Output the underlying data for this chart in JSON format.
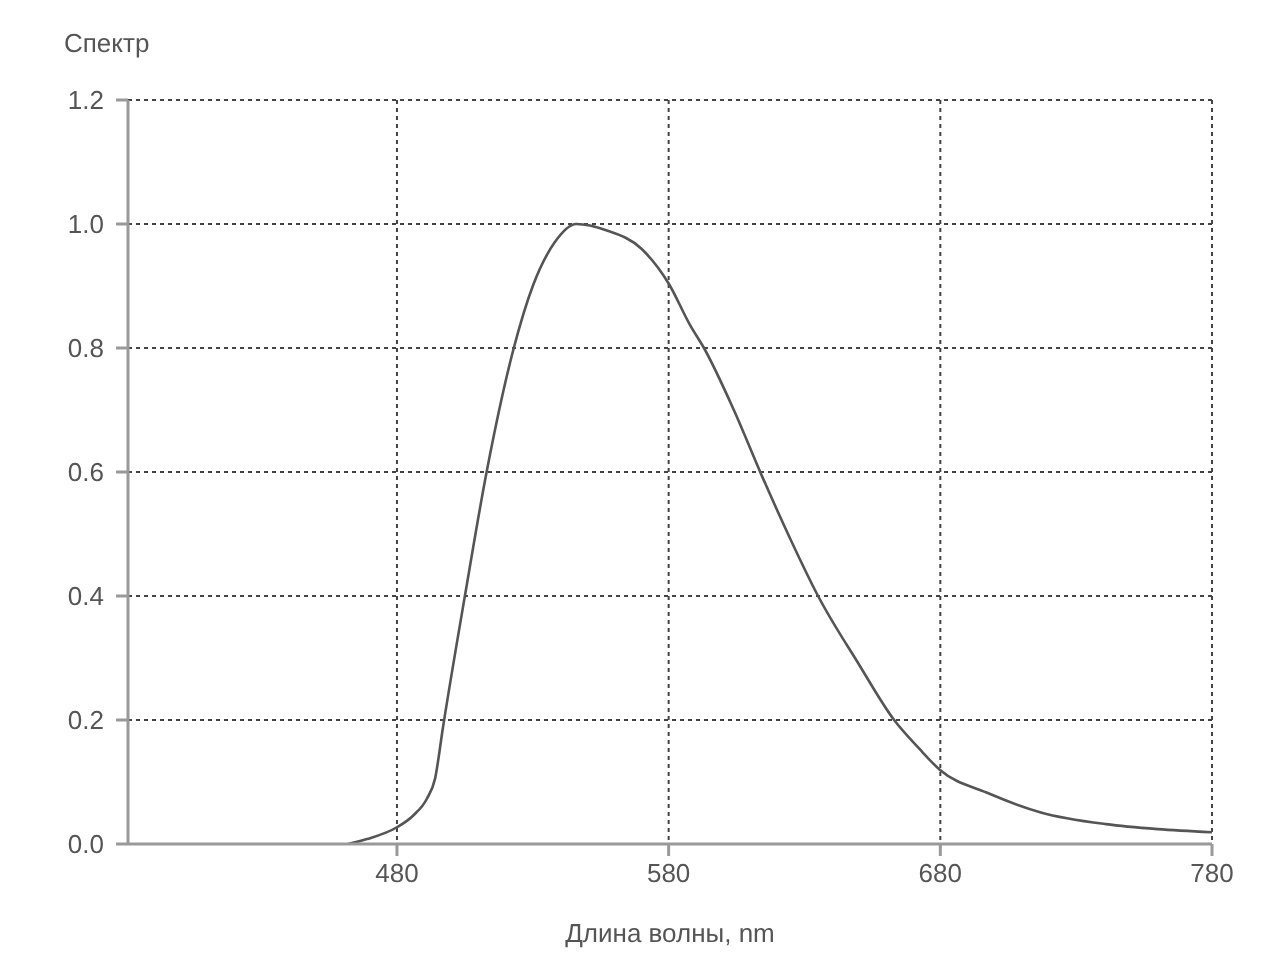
{
  "chart_data": {
    "type": "line",
    "ylabel": "Спектр",
    "xlabel": "Длина волны, nm",
    "x": [
      462,
      469,
      480,
      486,
      491,
      494,
      497,
      505,
      513,
      523,
      530,
      538,
      546,
      557,
      570,
      580,
      588,
      593,
      604,
      614,
      625,
      635,
      650,
      663,
      672,
      680,
      697,
      717,
      741,
      760,
      780
    ],
    "series": [
      {
        "color": "#555555",
        "values": [
          0,
          0.008,
          0.027,
          0.046,
          0.073,
          0.105,
          0.19,
          0.4,
          0.6,
          0.8,
          0.9,
          0.97,
          1.0,
          0.99,
          0.96,
          0.904,
          0.836,
          0.8,
          0.7,
          0.597,
          0.49,
          0.4,
          0.29,
          0.2,
          0.155,
          0.119,
          0.083,
          0.051,
          0.032,
          0.024,
          0.019
        ]
      }
    ],
    "xlim": [
      381,
      780
    ],
    "ylim": [
      0,
      1.2
    ],
    "xticks": [
      480,
      580,
      680,
      780
    ],
    "yticks": [
      {
        "value": 0,
        "label": "0.0"
      },
      0.2,
      0.4,
      0.6,
      0.8,
      {
        "value": 1,
        "label": "1.0"
      },
      1.2
    ],
    "grid": true,
    "line_style": "solid"
  }
}
